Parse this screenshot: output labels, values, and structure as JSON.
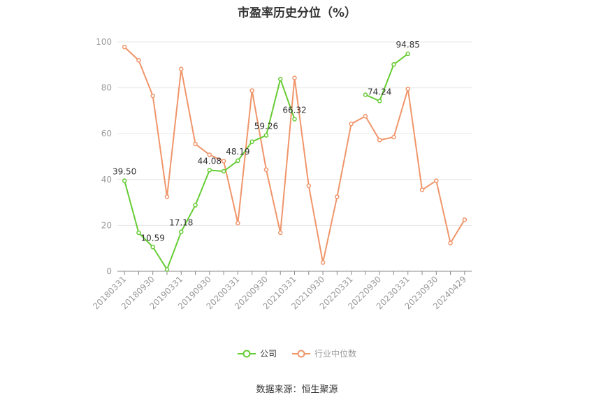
{
  "chart_data": {
    "type": "line",
    "title": "市盈率历史分位（%）",
    "source": "数据来源：恒生聚源",
    "ylim": [
      0,
      100
    ],
    "yticks": [
      0,
      20,
      40,
      60,
      80,
      100
    ],
    "grid": true,
    "legend_position": "bottom",
    "x": [
      "20180331",
      "20180630",
      "20180930",
      "20181231",
      "20190331",
      "20190630",
      "20190930",
      "20191231",
      "20200331",
      "20200630",
      "20200930",
      "20201231",
      "20210331",
      "20210630",
      "20210930",
      "20211231",
      "20220331",
      "20220630",
      "20220930",
      "20221231",
      "20230331",
      "20230630",
      "20230930",
      "20231231",
      "20240429"
    ],
    "xtick_labels": [
      "20180331",
      "20180930",
      "20190331",
      "20190930",
      "20200331",
      "20200930",
      "20210331",
      "20210930",
      "20220331",
      "20220930",
      "20230331",
      "20230930",
      "20240429"
    ],
    "series": [
      {
        "name": "公司",
        "color": "#66cc33",
        "values": [
          39.5,
          16.8,
          10.59,
          0.8,
          17.18,
          28.8,
          44.08,
          43.6,
          48.19,
          56.5,
          59.26,
          83.8,
          66.32,
          null,
          null,
          null,
          null,
          77.0,
          74.24,
          90.2,
          94.85,
          null,
          null,
          null,
          null
        ],
        "labels": {
          "0": "39.50",
          "2": "10.59",
          "4": "17.18",
          "6": "44.08",
          "8": "48.19",
          "10": "59.26",
          "12": "66.32",
          "18": "74.24",
          "20": "94.85"
        }
      },
      {
        "name": "行业中位数",
        "color": "#f0956a",
        "values": [
          97.8,
          92.0,
          76.5,
          32.5,
          88.2,
          55.5,
          50.8,
          48.0,
          21.0,
          78.8,
          44.3,
          16.8,
          84.3,
          37.3,
          3.8,
          32.5,
          64.3,
          67.6,
          57.2,
          58.5,
          79.5,
          35.5,
          39.5,
          12.3,
          22.5
        ]
      }
    ]
  }
}
